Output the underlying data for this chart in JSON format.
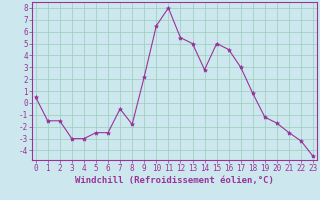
{
  "x": [
    0,
    1,
    2,
    3,
    4,
    5,
    6,
    7,
    8,
    9,
    10,
    11,
    12,
    13,
    14,
    15,
    16,
    17,
    18,
    19,
    20,
    21,
    22,
    23
  ],
  "y": [
    0.5,
    -1.5,
    -1.5,
    -3.0,
    -3.0,
    -2.5,
    -2.5,
    -0.5,
    -1.8,
    2.2,
    6.5,
    8.0,
    5.5,
    5.0,
    2.8,
    5.0,
    4.5,
    3.0,
    0.8,
    -1.2,
    -1.7,
    -2.5,
    -3.2,
    -4.5
  ],
  "line_color": "#993399",
  "marker": "*",
  "marker_size": 3,
  "bg_color": "#cce8ee",
  "grid_color": "#99ccbb",
  "xlabel": "Windchill (Refroidissement éolien,°C)",
  "xlabel_fontsize": 6.5,
  "tick_fontsize": 5.5,
  "ylim": [
    -4.8,
    8.5
  ],
  "xlim": [
    -0.3,
    23.3
  ],
  "yticks": [
    -4,
    -3,
    -2,
    -1,
    0,
    1,
    2,
    3,
    4,
    5,
    6,
    7,
    8
  ],
  "xticks": [
    0,
    1,
    2,
    3,
    4,
    5,
    6,
    7,
    8,
    9,
    10,
    11,
    12,
    13,
    14,
    15,
    16,
    17,
    18,
    19,
    20,
    21,
    22,
    23
  ]
}
